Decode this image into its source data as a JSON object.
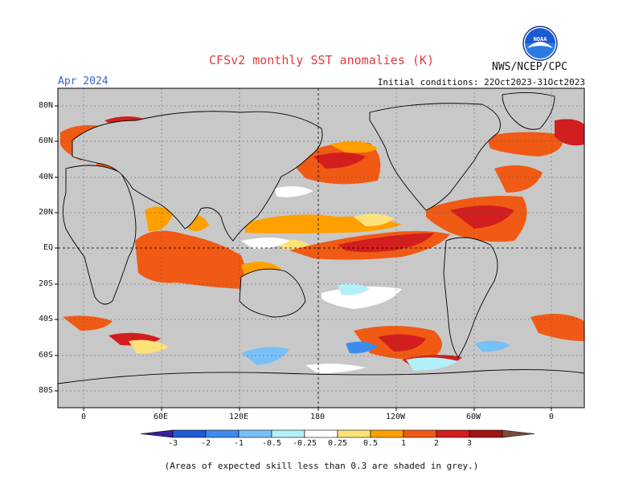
{
  "header": {
    "title": "CFSv2 monthly SST anomalies (K)",
    "valid_month": "Apr 2024",
    "agency": "NWS/NCEP/CPC",
    "initial_conditions": "Initial conditions: 22Oct2023-31Oct2023",
    "logo_text": "NOAA"
  },
  "map": {
    "lat_labels": [
      "80N",
      "60N",
      "40N",
      "20N",
      "EQ",
      "20S",
      "40S",
      "60S",
      "80S"
    ],
    "lon_labels": [
      "0",
      "60E",
      "120E",
      "180",
      "120W",
      "60W",
      "0"
    ],
    "land_color": "#c8c8c8",
    "mask_color": "#c8c8c8"
  },
  "colorbar": {
    "ticks": [
      "-3",
      "-2",
      "-1",
      "-0.5",
      "-0.25",
      "0.25",
      "0.5",
      "1",
      "2",
      "3"
    ],
    "colors": [
      "#3c1ea0",
      "#1e5ad2",
      "#3c8cf0",
      "#78c0f8",
      "#b4f0fa",
      "#ffffff",
      "#fde27a",
      "#ffa000",
      "#f05a14",
      "#d21e1e",
      "#a01414",
      "#7a4b3a"
    ]
  },
  "footnote": "(Areas of expected skill less than 0.3 are shaded in grey.)"
}
